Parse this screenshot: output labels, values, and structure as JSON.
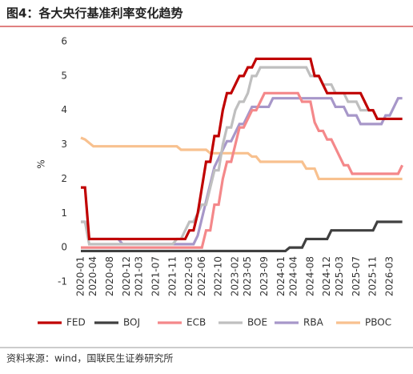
{
  "chart_data": {
    "type": "line",
    "title": "图4：各大央行基准利率变化趋势",
    "ylabel": "%",
    "source": "资料来源：wind，国联民生证券研究所",
    "x": [
      "2020-01",
      "2020-02",
      "2020-03",
      "2020-04",
      "2020-05",
      "2020-06",
      "2020-07",
      "2020-08",
      "2020-09",
      "2020-10",
      "2020-11",
      "2020-12",
      "2021-01",
      "2021-02",
      "2021-03",
      "2021-04",
      "2021-05",
      "2021-06",
      "2021-07",
      "2021-08",
      "2021-09",
      "2021-10",
      "2021-11",
      "2021-12",
      "2022-01",
      "2022-02",
      "2022-03",
      "2022-04",
      "2022-05",
      "2022-06",
      "2022-07",
      "2022-08",
      "2022-09",
      "2022-10",
      "2022-11",
      "2022-12",
      "2023-01",
      "2023-02",
      "2023-03",
      "2023-04",
      "2023-05",
      "2023-06",
      "2023-07",
      "2023-08",
      "2023-09",
      "2023-10",
      "2023-11",
      "2023-12",
      "2024-01",
      "2024-02",
      "2024-03",
      "2024-04",
      "2024-05",
      "2024-06",
      "2024-07",
      "2024-08",
      "2024-09",
      "2024-10",
      "2024-11",
      "2024-12",
      "2025-01",
      "2025-02",
      "2025-03",
      "2025-04",
      "2025-05",
      "2025-06",
      "2025-07",
      "2025-08",
      "2025-09",
      "2025-10",
      "2025-11",
      "2025-12",
      "2026-01",
      "2026-02",
      "2026-03",
      "2026-04",
      "2026-05",
      "2026-06"
    ],
    "xticks": [
      "2020-01",
      "2020-04",
      "2020-08",
      "2020-12",
      "2021-03",
      "2021-07",
      "2021-11",
      "2022-03",
      "2022-06",
      "2022-10",
      "2023-02",
      "2023-05",
      "2023-09",
      "2024-01",
      "2024-04",
      "2024-08",
      "2024-12",
      "2025-03",
      "2025-07",
      "2025-11",
      "2026-03"
    ],
    "ylim": [
      -1,
      6
    ],
    "yticks": [
      -1,
      0,
      1,
      2,
      3,
      4,
      5,
      6
    ],
    "grid": false,
    "series": [
      {
        "name": "FED",
        "color": "#c00000",
        "values": [
          1.75,
          1.75,
          0.25,
          0.25,
          0.25,
          0.25,
          0.25,
          0.25,
          0.25,
          0.25,
          0.25,
          0.25,
          0.25,
          0.25,
          0.25,
          0.25,
          0.25,
          0.25,
          0.25,
          0.25,
          0.25,
          0.25,
          0.25,
          0.25,
          0.25,
          0.25,
          0.5,
          0.5,
          1.0,
          1.75,
          2.5,
          2.5,
          3.25,
          3.25,
          4.0,
          4.5,
          4.5,
          4.75,
          5.0,
          5.0,
          5.25,
          5.25,
          5.5,
          5.5,
          5.5,
          5.5,
          5.5,
          5.5,
          5.5,
          5.5,
          5.5,
          5.5,
          5.5,
          5.5,
          5.5,
          5.5,
          5.0,
          5.0,
          4.75,
          4.5,
          4.5,
          4.5,
          4.5,
          4.5,
          4.5,
          4.5,
          4.5,
          4.5,
          4.25,
          4.0,
          4.0,
          3.75,
          3.75,
          3.75,
          3.75,
          3.75,
          3.75,
          3.75
        ]
      },
      {
        "name": "BOJ",
        "color": "#404040",
        "values": [
          -0.1,
          -0.1,
          -0.1,
          -0.1,
          -0.1,
          -0.1,
          -0.1,
          -0.1,
          -0.1,
          -0.1,
          -0.1,
          -0.1,
          -0.1,
          -0.1,
          -0.1,
          -0.1,
          -0.1,
          -0.1,
          -0.1,
          -0.1,
          -0.1,
          -0.1,
          -0.1,
          -0.1,
          -0.1,
          -0.1,
          -0.1,
          -0.1,
          -0.1,
          -0.1,
          -0.1,
          -0.1,
          -0.1,
          -0.1,
          -0.1,
          -0.1,
          -0.1,
          -0.1,
          -0.1,
          -0.1,
          -0.1,
          -0.1,
          -0.1,
          -0.1,
          -0.1,
          -0.1,
          -0.1,
          -0.1,
          -0.1,
          -0.1,
          0,
          0,
          0,
          0,
          0.25,
          0.25,
          0.25,
          0.25,
          0.25,
          0.25,
          0.5,
          0.5,
          0.5,
          0.5,
          0.5,
          0.5,
          0.5,
          0.5,
          0.5,
          0.5,
          0.5,
          0.75,
          0.75,
          0.75,
          0.75,
          0.75,
          0.75,
          0.75
        ]
      },
      {
        "name": "ECB",
        "color": "#f4888a",
        "values": [
          0,
          0,
          0,
          0,
          0,
          0,
          0,
          0,
          0,
          0,
          0,
          0,
          0,
          0,
          0,
          0,
          0,
          0,
          0,
          0,
          0,
          0,
          0,
          0,
          0,
          0,
          0,
          0,
          0,
          0,
          0.5,
          0.5,
          1.25,
          1.25,
          2.0,
          2.5,
          2.5,
          3.0,
          3.5,
          3.5,
          3.75,
          4.0,
          4.0,
          4.25,
          4.5,
          4.5,
          4.5,
          4.5,
          4.5,
          4.5,
          4.5,
          4.5,
          4.5,
          4.25,
          4.25,
          4.25,
          3.65,
          3.4,
          3.4,
          3.15,
          3.15,
          2.9,
          2.65,
          2.4,
          2.4,
          2.15,
          2.15,
          2.15,
          2.15,
          2.15,
          2.15,
          2.15,
          2.15,
          2.15,
          2.15,
          2.15,
          2.15,
          2.4
        ]
      },
      {
        "name": "BOE",
        "color": "#bfbfbf",
        "values": [
          0.75,
          0.75,
          0.1,
          0.1,
          0.1,
          0.1,
          0.1,
          0.1,
          0.1,
          0.1,
          0.1,
          0.1,
          0.1,
          0.1,
          0.1,
          0.1,
          0.1,
          0.1,
          0.1,
          0.1,
          0.1,
          0.1,
          0.1,
          0.25,
          0.25,
          0.5,
          0.75,
          0.75,
          1.0,
          1.25,
          1.25,
          1.75,
          2.25,
          2.25,
          3.0,
          3.5,
          3.5,
          4.0,
          4.25,
          4.25,
          4.5,
          5.0,
          5.0,
          5.25,
          5.25,
          5.25,
          5.25,
          5.25,
          5.25,
          5.25,
          5.25,
          5.25,
          5.25,
          5.25,
          5.25,
          5.0,
          5.0,
          5.0,
          4.75,
          4.75,
          4.75,
          4.5,
          4.5,
          4.5,
          4.25,
          4.25,
          4.25,
          4.0,
          4.0,
          4.0,
          4.0,
          3.75,
          3.75,
          3.75,
          3.75,
          3.75,
          3.75,
          3.75
        ]
      },
      {
        "name": "RBA",
        "color": "#a797c9",
        "values": [
          0.75,
          0.75,
          0.25,
          0.25,
          0.25,
          0.25,
          0.25,
          0.25,
          0.25,
          0.25,
          0.1,
          0.1,
          0.1,
          0.1,
          0.1,
          0.1,
          0.1,
          0.1,
          0.1,
          0.1,
          0.1,
          0.1,
          0.1,
          0.1,
          0.1,
          0.1,
          0.1,
          0.1,
          0.35,
          0.85,
          1.35,
          1.85,
          2.35,
          2.6,
          2.85,
          3.1,
          3.1,
          3.35,
          3.6,
          3.6,
          3.85,
          4.1,
          4.1,
          4.1,
          4.1,
          4.1,
          4.35,
          4.35,
          4.35,
          4.35,
          4.35,
          4.35,
          4.35,
          4.35,
          4.35,
          4.35,
          4.35,
          4.35,
          4.35,
          4.35,
          4.35,
          4.1,
          4.1,
          4.1,
          3.85,
          3.85,
          3.85,
          3.6,
          3.6,
          3.6,
          3.6,
          3.6,
          3.6,
          3.85,
          3.85,
          4.1,
          4.35,
          4.35
        ]
      },
      {
        "name": "PBOC",
        "color": "#f8c18f",
        "values": [
          3.2,
          3.15,
          3.05,
          2.95,
          2.95,
          2.95,
          2.95,
          2.95,
          2.95,
          2.95,
          2.95,
          2.95,
          2.95,
          2.95,
          2.95,
          2.95,
          2.95,
          2.95,
          2.95,
          2.95,
          2.95,
          2.95,
          2.95,
          2.95,
          2.85,
          2.85,
          2.85,
          2.85,
          2.85,
          2.85,
          2.85,
          2.75,
          2.75,
          2.75,
          2.75,
          2.75,
          2.75,
          2.75,
          2.75,
          2.75,
          2.75,
          2.65,
          2.65,
          2.5,
          2.5,
          2.5,
          2.5,
          2.5,
          2.5,
          2.5,
          2.5,
          2.5,
          2.5,
          2.5,
          2.3,
          2.3,
          2.3,
          2.0,
          2.0,
          2.0,
          2.0,
          2.0,
          2.0,
          2.0,
          2.0,
          2.0,
          2.0,
          2.0,
          2.0,
          2.0,
          2.0,
          2.0,
          2.0,
          2.0,
          2.0,
          2.0,
          2.0,
          2.0
        ]
      }
    ]
  }
}
